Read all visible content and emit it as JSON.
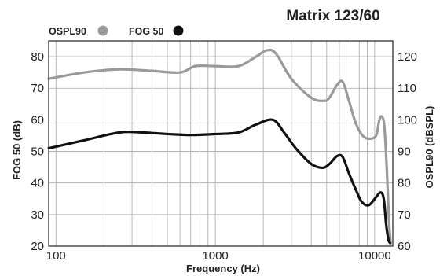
{
  "chart_data": {
    "type": "line",
    "title": "Matrix 123/60",
    "xlabel": "Frequency (Hz)",
    "ylabel_left": "FOG 50 (dB)",
    "ylabel_right": "OSPL90 (dBSPL)",
    "x_scale": "log",
    "xlim": [
      90,
      13000
    ],
    "ylim_left": [
      20,
      85
    ],
    "ylim_right": [
      60,
      125
    ],
    "x_tick_labels": [
      "100",
      "1000",
      "10000"
    ],
    "y_left_tick_labels": [
      "20",
      "30",
      "40",
      "50",
      "60",
      "70",
      "80"
    ],
    "y_right_tick_labels": [
      "60",
      "70",
      "80",
      "90",
      "100",
      "110",
      "120"
    ],
    "grid": true,
    "legend_position": "top-left",
    "series": [
      {
        "name": "OSPL90",
        "axis": "right",
        "color": "#9a9a9a",
        "x": [
          90,
          150,
          250,
          400,
          600,
          750,
          1000,
          1400,
          1800,
          2100,
          2400,
          3000,
          4000,
          4800,
          5200,
          5800,
          6300,
          6900,
          7600,
          8400,
          9200,
          10200,
          10700,
          11100,
          11500,
          11900,
          12300,
          12600
        ],
        "y": [
          113,
          115,
          116,
          115.5,
          115,
          117,
          117,
          117,
          120,
          122,
          121,
          113,
          107,
          106,
          107,
          111,
          112,
          106,
          99,
          95,
          94,
          95,
          100,
          101,
          98,
          85,
          68,
          61
        ]
      },
      {
        "name": "FOG 50",
        "axis": "left",
        "color": "#111111",
        "x": [
          90,
          150,
          250,
          350,
          500,
          700,
          1000,
          1400,
          1800,
          2300,
          2700,
          3200,
          4000,
          4700,
          5200,
          5800,
          6300,
          6900,
          7600,
          8300,
          9200,
          10200,
          10900,
          11400,
          11800,
          12200,
          12500
        ],
        "y": [
          51,
          53.5,
          56,
          56,
          55.5,
          55.2,
          55.5,
          56,
          58.5,
          60,
          56,
          51,
          46,
          44.8,
          46,
          48.5,
          48.2,
          43,
          38,
          34,
          33,
          35.5,
          37,
          35,
          27,
          22,
          21
        ]
      }
    ]
  },
  "legend": {
    "ospl_label": "OSPL90",
    "fog_label": "FOG 50"
  },
  "colors": {
    "ospl": "#9a9a9a",
    "fog": "#111111",
    "grid": "#a8a8a8",
    "frame": "#222222"
  }
}
